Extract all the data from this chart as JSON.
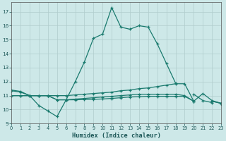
{
  "xlabel": "Humidex (Indice chaleur)",
  "x": [
    0,
    1,
    2,
    3,
    4,
    5,
    6,
    7,
    8,
    9,
    10,
    11,
    12,
    13,
    14,
    15,
    16,
    17,
    18,
    19,
    20,
    21,
    22,
    23
  ],
  "main_line": [
    11.4,
    11.3,
    11.0,
    10.3,
    9.9,
    9.5,
    10.7,
    12.0,
    13.4,
    15.1,
    15.4,
    17.3,
    15.9,
    15.75,
    16.0,
    15.9,
    14.7,
    13.3,
    11.9,
    null,
    11.1,
    10.65,
    10.5,
    null
  ],
  "flat_line1": [
    11.35,
    11.25,
    11.0,
    11.0,
    11.0,
    11.0,
    11.0,
    11.05,
    11.1,
    11.15,
    11.2,
    11.25,
    11.35,
    11.4,
    11.5,
    11.55,
    11.65,
    11.75,
    11.85,
    11.85,
    10.6,
    11.15,
    10.65,
    10.45
  ],
  "flat_line2": [
    11.0,
    11.0,
    11.0,
    11.0,
    11.0,
    10.7,
    10.7,
    10.75,
    10.8,
    10.85,
    10.9,
    10.95,
    11.0,
    11.05,
    11.1,
    11.1,
    11.1,
    11.1,
    11.1,
    11.0,
    10.6,
    null,
    10.6,
    10.45
  ],
  "flat_line3": [
    11.0,
    11.0,
    11.0,
    11.0,
    11.0,
    10.7,
    10.7,
    10.7,
    10.72,
    10.74,
    10.76,
    10.8,
    10.85,
    10.9,
    10.92,
    10.95,
    10.95,
    10.95,
    10.95,
    10.95,
    10.6,
    null,
    10.6,
    10.45
  ],
  "color": "#1a7a6e",
  "bg_color": "#cde8e8",
  "grid_color": "#b0cccc",
  "ylim": [
    9,
    17.7
  ],
  "xlim": [
    0,
    23
  ],
  "yticks": [
    9,
    10,
    11,
    12,
    13,
    14,
    15,
    16,
    17
  ],
  "xticks": [
    0,
    1,
    2,
    3,
    4,
    5,
    6,
    7,
    8,
    9,
    10,
    11,
    12,
    13,
    14,
    15,
    16,
    17,
    18,
    19,
    20,
    21,
    22,
    23
  ]
}
